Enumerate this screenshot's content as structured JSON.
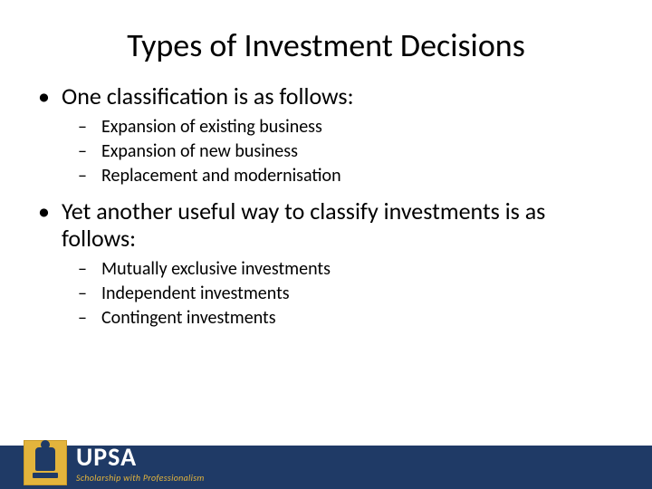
{
  "title": "Types of Investment Decisions",
  "sections": [
    {
      "text": "One classification is as follows:",
      "sub": [
        "Expansion of existing business",
        "Expansion of new business",
        "Replacement and modernisation"
      ]
    },
    {
      "text": "Yet another useful way to classify investments is as follows:",
      "sub": [
        "Mutually exclusive investments",
        "Independent investments",
        "Contingent investments"
      ]
    }
  ],
  "footer": {
    "brand": "UPSA",
    "tagline": "Scholarship with Professionalism"
  },
  "style": {
    "band_color": "#1f3a66",
    "logo_bg": "#e3b43c",
    "title_fontsize": 36,
    "l1_fontsize": 26,
    "l2_fontsize": 20
  }
}
